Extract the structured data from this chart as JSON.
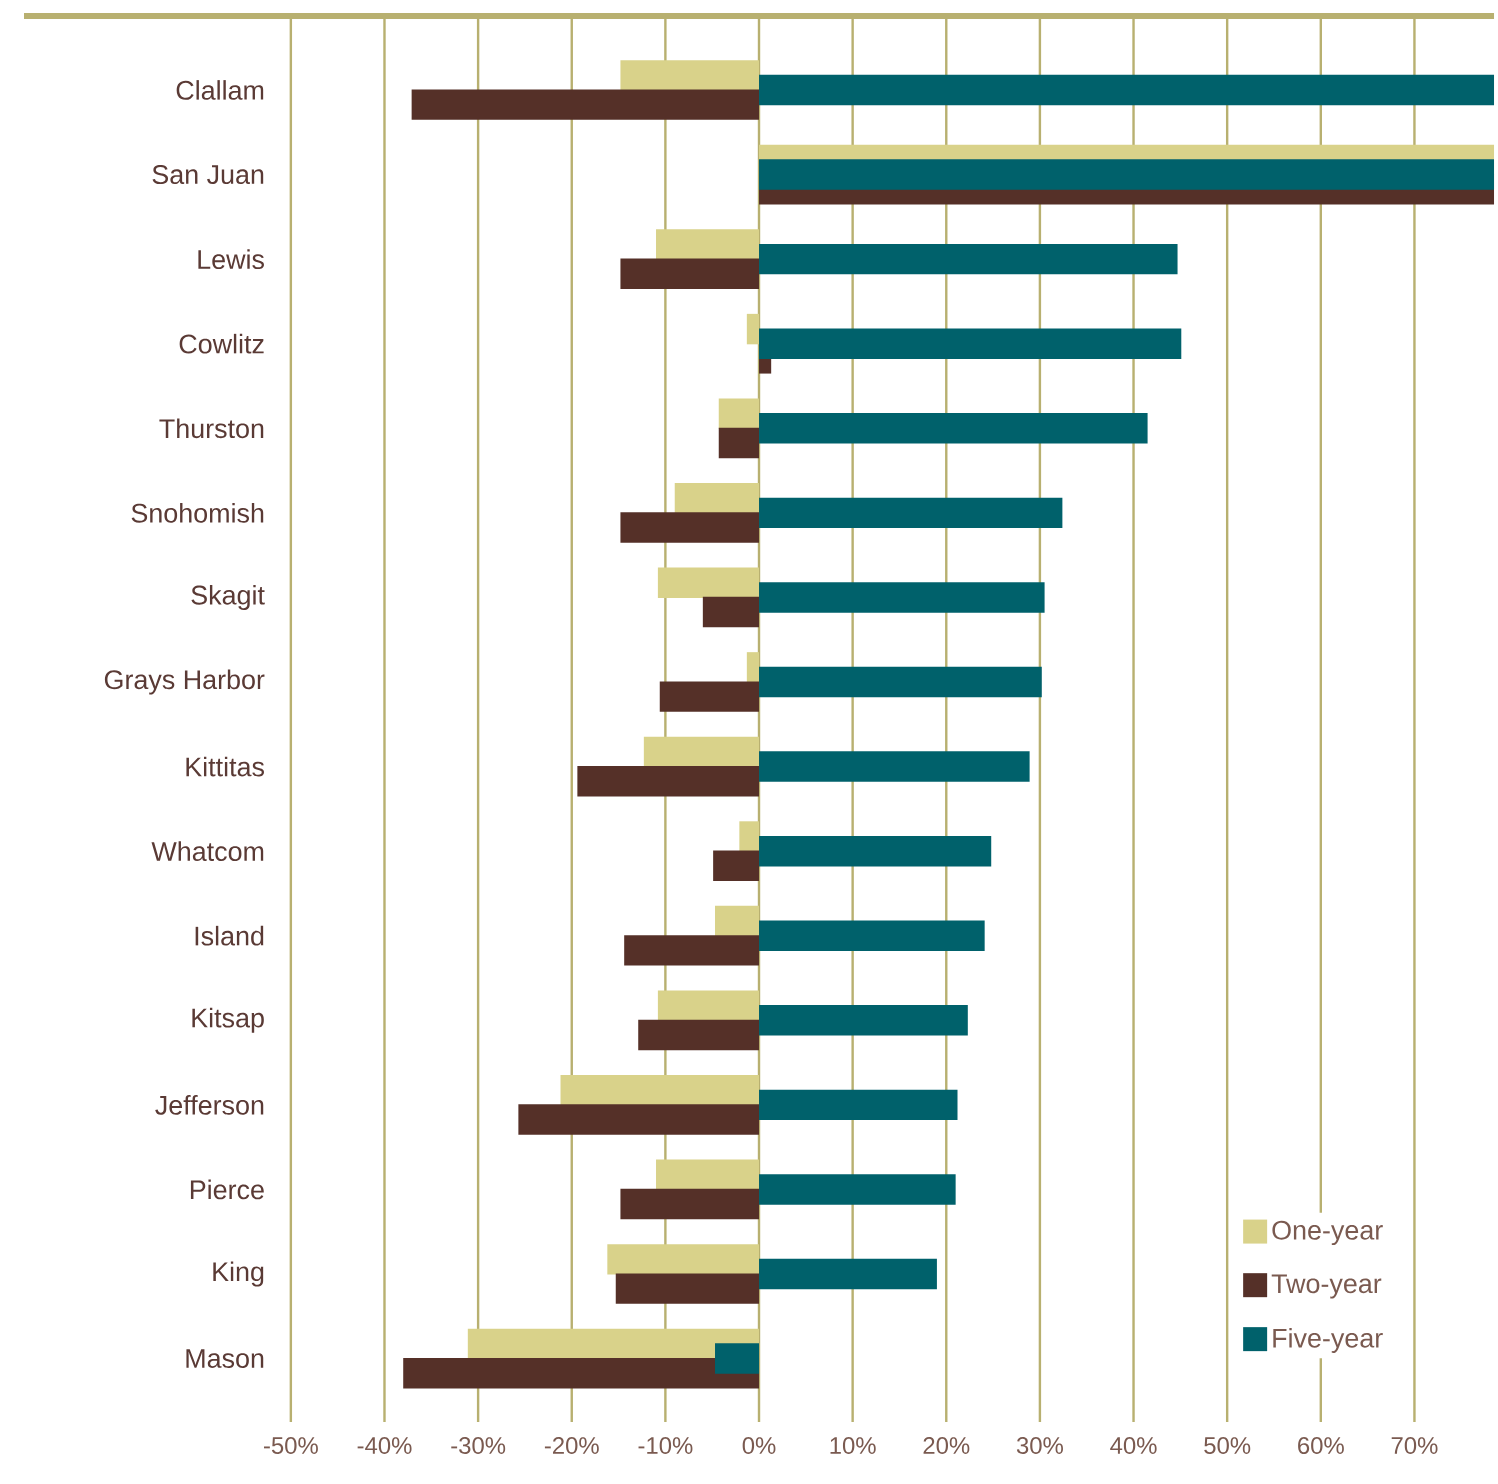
{
  "chart_data": {
    "type": "bar",
    "orientation": "horizontal",
    "categories": [
      "Clallam",
      "San Juan",
      "Lewis",
      "Cowlitz",
      "Thurston",
      "Snohomish",
      "Skagit",
      "Grays Harbor",
      "Kittitas",
      "Whatcom",
      "Island",
      "Kitsap",
      "Jefferson",
      "Pierce",
      "King",
      "Mason"
    ],
    "series": [
      {
        "name": "One-year",
        "color": "#d9d28a",
        "values": [
          -14.8,
          78.5,
          -11.0,
          -1.3,
          -4.3,
          -9.0,
          -10.8,
          -1.3,
          -12.3,
          -2.1,
          -4.7,
          -10.8,
          -21.2,
          -11.0,
          -16.2,
          -31.1
        ]
      },
      {
        "name": "Two-year",
        "color": "#553028",
        "values": [
          -37.1,
          78.5,
          -14.8,
          1.3,
          -4.3,
          -14.8,
          -6.0,
          -10.6,
          -19.4,
          -4.9,
          -14.4,
          -12.9,
          -25.7,
          -14.8,
          -15.3,
          -38.0
        ]
      },
      {
        "name": "Five-year",
        "color": "#00616b",
        "values": [
          78.5,
          78.5,
          44.7,
          45.1,
          41.5,
          32.4,
          30.5,
          30.2,
          28.9,
          24.8,
          24.1,
          22.3,
          21.2,
          21.0,
          19.0,
          -4.7
        ]
      }
    ],
    "xlim": [
      -78.5,
      78.5
    ],
    "xticks": [
      {
        "value": -50,
        "label": "-50%"
      },
      {
        "value": -40,
        "label": "-40%"
      },
      {
        "value": -30,
        "label": "-30%"
      },
      {
        "value": -20,
        "label": "-20%"
      },
      {
        "value": -10,
        "label": "-10%"
      },
      {
        "value": 0,
        "label": "0%"
      },
      {
        "value": 10,
        "label": "10%"
      },
      {
        "value": 20,
        "label": "20%"
      },
      {
        "value": 30,
        "label": "30%"
      },
      {
        "value": 40,
        "label": "40%"
      },
      {
        "value": 50,
        "label": "50%"
      },
      {
        "value": 60,
        "label": "60%"
      },
      {
        "value": 70,
        "label": "70%"
      }
    ],
    "grid": "x",
    "legend": "bottom right"
  }
}
